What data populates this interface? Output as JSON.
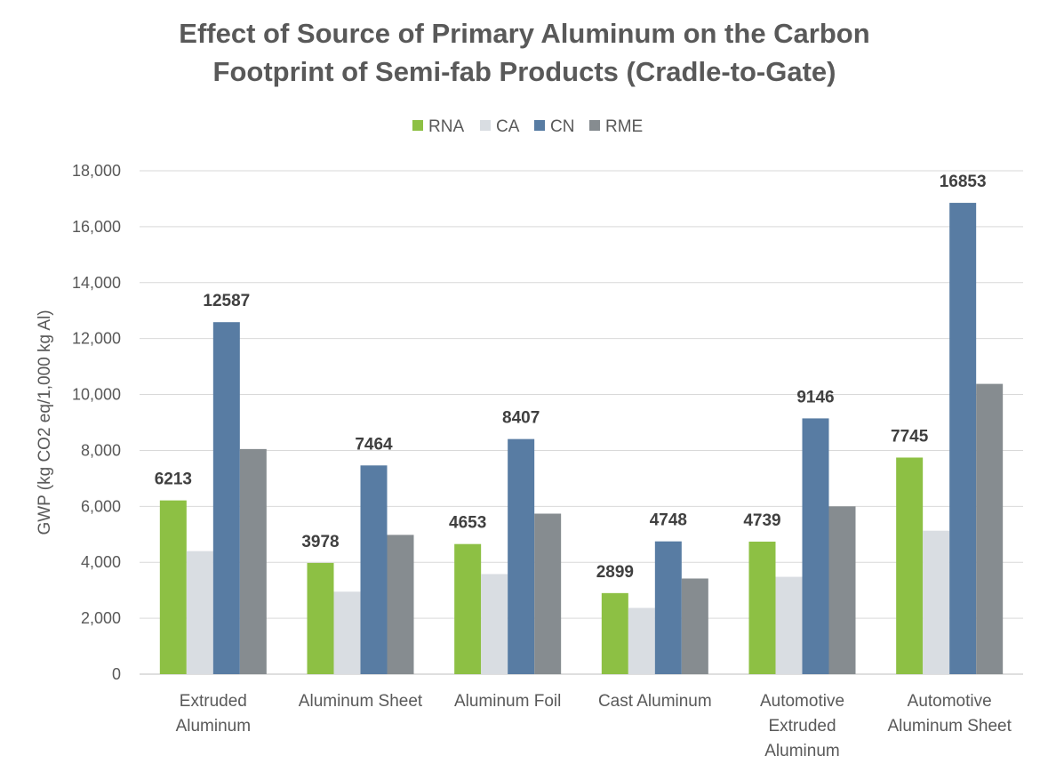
{
  "chart_data": {
    "type": "bar",
    "title": "Effect of Source of Primary Aluminum on the Carbon Footprint of Semi-fab Products (Cradle-to-Gate)",
    "title_lines": [
      "Effect of Source of Primary Aluminum on the Carbon",
      "Footprint of Semi-fab Products (Cradle-to-Gate)"
    ],
    "xlabel": "",
    "ylabel": "GWP (kg CO2 eq/1,000 kg Al)",
    "ylim": [
      0,
      18000
    ],
    "yticks": [
      0,
      2000,
      4000,
      6000,
      8000,
      10000,
      12000,
      14000,
      16000,
      18000
    ],
    "ytick_labels": [
      "0",
      "2,000",
      "4,000",
      "6,000",
      "8,000",
      "10,000",
      "12,000",
      "14,000",
      "16,000",
      "18,000"
    ],
    "grid": true,
    "legend_position": "top-center",
    "categories": [
      "Extruded Aluminum",
      "Aluminum Sheet",
      "Aluminum Foil",
      "Cast Aluminum",
      "Automotive Extruded Aluminum",
      "Automotive Aluminum Sheet"
    ],
    "category_label_lines": [
      [
        "Extruded",
        "Aluminum"
      ],
      [
        "Aluminum Sheet"
      ],
      [
        "Aluminum Foil"
      ],
      [
        "Cast Aluminum"
      ],
      [
        "Automotive",
        "Extruded",
        "Aluminum"
      ],
      [
        "Automotive",
        "Aluminum Sheet"
      ]
    ],
    "series": [
      {
        "name": "RNA",
        "color": "#8dc044",
        "values": [
          6213,
          3978,
          4653,
          2899,
          4739,
          7745
        ]
      },
      {
        "name": "CA",
        "color": "#d9dde2",
        "values": [
          4400,
          2950,
          3580,
          2370,
          3480,
          5130
        ]
      },
      {
        "name": "CN",
        "color": "#587ca3",
        "values": [
          12587,
          7464,
          8407,
          4748,
          9146,
          16853
        ]
      },
      {
        "name": "RME",
        "color": "#868c90",
        "values": [
          8050,
          4980,
          5740,
          3420,
          6000,
          10380
        ]
      }
    ],
    "data_labels": [
      {
        "category_index": 0,
        "series": "RNA",
        "text": "6213"
      },
      {
        "category_index": 0,
        "series": "CN",
        "text": "12587"
      },
      {
        "category_index": 1,
        "series": "RNA",
        "text": "3978"
      },
      {
        "category_index": 1,
        "series": "CN",
        "text": "7464"
      },
      {
        "category_index": 2,
        "series": "RNA",
        "text": "4653"
      },
      {
        "category_index": 2,
        "series": "CN",
        "text": "8407"
      },
      {
        "category_index": 3,
        "series": "RNA",
        "text": "2899"
      },
      {
        "category_index": 3,
        "series": "CN",
        "text": "4748"
      },
      {
        "category_index": 4,
        "series": "RNA",
        "text": "4739"
      },
      {
        "category_index": 4,
        "series": "CN",
        "text": "9146"
      },
      {
        "category_index": 5,
        "series": "RNA",
        "text": "7745"
      },
      {
        "category_index": 5,
        "series": "CN",
        "text": "16853"
      }
    ]
  }
}
